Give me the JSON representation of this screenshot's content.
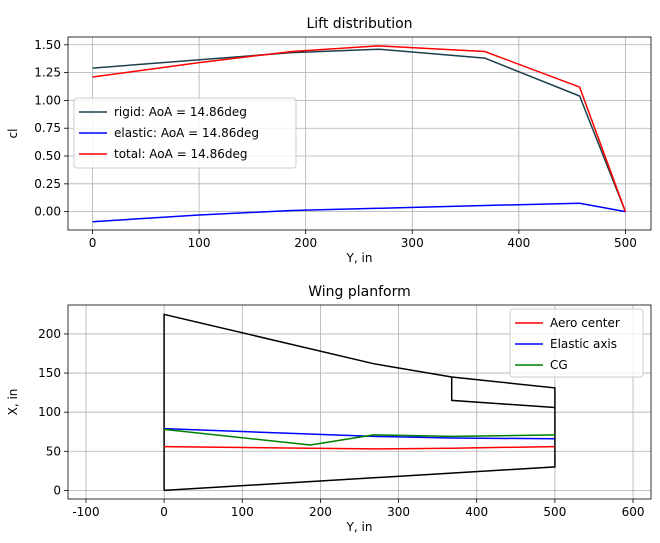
{
  "chart_data": [
    {
      "type": "line",
      "title": "Lift distribution",
      "xlabel": "Y, in",
      "ylabel": "cl",
      "xlim": [
        -23,
        524
      ],
      "ylim": [
        -0.165,
        1.57
      ],
      "xticks": [
        0,
        100,
        200,
        300,
        400,
        500
      ],
      "yticks": [
        0.0,
        0.25,
        0.5,
        0.75,
        1.0,
        1.25,
        1.5
      ],
      "ytick_labels": [
        "0.00",
        "0.25",
        "0.50",
        "0.75",
        "1.00",
        "1.25",
        "1.50"
      ],
      "grid": true,
      "legend_position": "center-left",
      "series": [
        {
          "name": "rigid: AoA = 14.86deg",
          "color": "#1c3f4a",
          "x": [
            0,
            187,
            268,
            368,
            457,
            500
          ],
          "y": [
            1.29,
            1.43,
            1.46,
            1.38,
            1.04,
            0.0
          ]
        },
        {
          "name": "elastic: AoA = 14.86deg",
          "color": "#0000ff",
          "x": [
            0,
            100,
            187,
            268,
            368,
            457,
            500
          ],
          "y": [
            -0.09,
            -0.03,
            0.01,
            0.03,
            0.055,
            0.075,
            0.0
          ]
        },
        {
          "name": "total: AoA = 14.86deg",
          "color": "#ff0000",
          "x": [
            0,
            100,
            187,
            268,
            368,
            457,
            500
          ],
          "y": [
            1.21,
            1.34,
            1.44,
            1.49,
            1.44,
            1.12,
            0.0
          ]
        }
      ]
    },
    {
      "type": "line",
      "title": "Wing planform",
      "xlabel": "Y, in",
      "ylabel": "X, in",
      "xlim": [
        -123,
        623
      ],
      "ylim": [
        -11,
        237
      ],
      "xticks": [
        -100,
        0,
        100,
        200,
        300,
        400,
        500,
        600
      ],
      "yticks": [
        0,
        50,
        100,
        150,
        200
      ],
      "grid": true,
      "legend_position": "upper-right",
      "outline": {
        "color": "#000000",
        "paths": [
          {
            "x": [
              0,
              0,
              268,
              368,
              500,
              500,
              0
            ],
            "y": [
              0,
              225,
              162,
              145,
              131,
              30,
              0
            ]
          },
          {
            "x": [
              368,
              368,
              500
            ],
            "y": [
              145,
              115,
              106
            ]
          }
        ]
      },
      "series": [
        {
          "name": "Aero center",
          "color": "#ff0000",
          "x": [
            0,
            187,
            268,
            368,
            500
          ],
          "y": [
            56,
            54,
            53,
            54,
            56
          ]
        },
        {
          "name": "Elastic axis",
          "color": "#0000ff",
          "x": [
            0,
            268,
            368,
            500
          ],
          "y": [
            79,
            69,
            67,
            66
          ]
        },
        {
          "name": "CG",
          "color": "#008000",
          "x": [
            0,
            187,
            268,
            368,
            500
          ],
          "y": [
            78,
            58,
            71,
            69,
            71
          ]
        }
      ]
    }
  ]
}
